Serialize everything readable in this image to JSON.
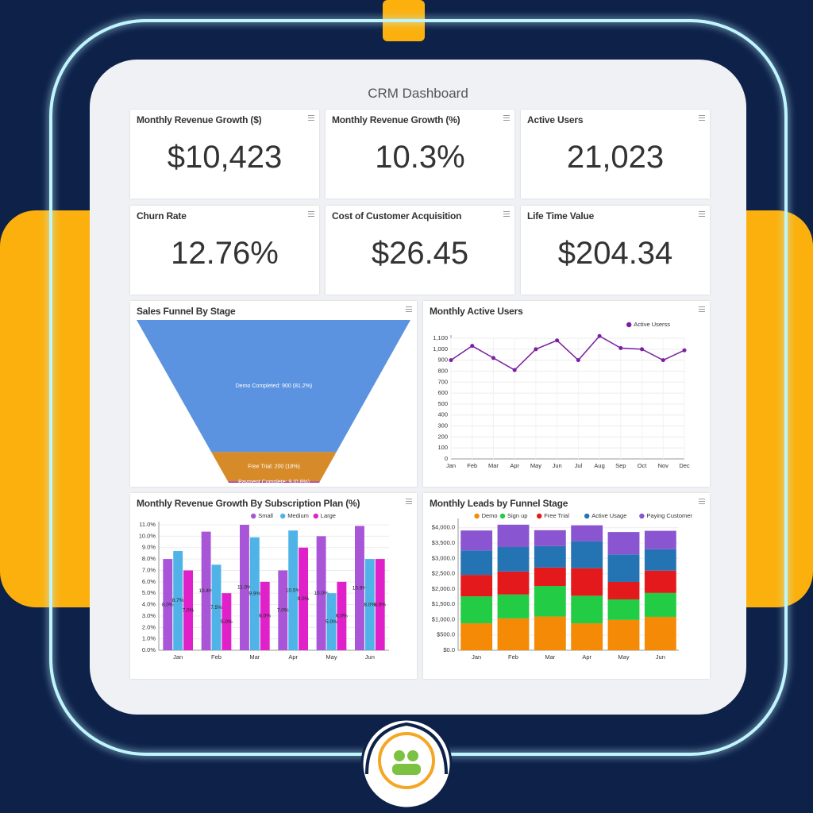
{
  "header": {
    "title": "CRM Dashboard"
  },
  "kpis": [
    {
      "label": "Monthly Revenue Growth ($)",
      "value": "$10,423"
    },
    {
      "label": "Monthly Revenue Growth (%)",
      "value": "10.3%"
    },
    {
      "label": "Active Users",
      "value": "21,023"
    },
    {
      "label": "Churn Rate",
      "value": "12.76%"
    },
    {
      "label": "Cost of Customer Acquisition",
      "value": "$26.45"
    },
    {
      "label": "Life Time Value",
      "value": "$204.34"
    }
  ],
  "chart_data": [
    {
      "type": "funnel",
      "title": "Sales Funnel By Stage",
      "values": [
        900,
        200,
        9
      ],
      "value_labels": [
        "Demo Completed: 900 (81.2%)",
        "Free Trial: 200 (18%)",
        "Payment Complete: 9 (0.8%)"
      ],
      "colors": [
        "#5b93e0",
        "#d68a28",
        "#9c3cb0"
      ]
    },
    {
      "type": "line",
      "title": "Monthly Active Users",
      "categories": [
        "Jan",
        "Feb",
        "Mar",
        "Apr",
        "May",
        "Jun",
        "Jul",
        "Aug",
        "Sep",
        "Oct",
        "Nov",
        "Dec"
      ],
      "series": [
        {
          "name": "Active Userss",
          "color": "#7b1fa2",
          "values": [
            900,
            1030,
            920,
            810,
            1000,
            1080,
            900,
            1120,
            1010,
            1000,
            900,
            990
          ]
        }
      ],
      "ylim": [
        0,
        1100
      ],
      "yticks": [
        0,
        100,
        200,
        300,
        400,
        500,
        600,
        700,
        800,
        900,
        {
          "value": 1000,
          "label": "1,000"
        },
        {
          "value": 1100,
          "label": "1,100"
        }
      ],
      "grid": true,
      "legend": "top-right"
    },
    {
      "type": "bar",
      "title": "Monthly Revenue Growth By Subscription Plan (%)",
      "categories": [
        "Jan",
        "Feb",
        "Mar",
        "Apr",
        "May",
        "Jun"
      ],
      "series": [
        {
          "name": "Small",
          "color": "#a855d8",
          "values": [
            8.0,
            10.4,
            11.0,
            7.0,
            10.0,
            10.9
          ],
          "value_labels": [
            "8.0%",
            "10.4%",
            "11.0%",
            "7.0%",
            "10.0%",
            "10.9%"
          ]
        },
        {
          "name": "Medium",
          "color": "#4fb3e8",
          "values": [
            8.7,
            7.5,
            9.9,
            10.5,
            5.0,
            8.0
          ],
          "value_labels": [
            "8.7%",
            "7.5%",
            "9.9%",
            "10.5%",
            "5.0%",
            "8.0%"
          ]
        },
        {
          "name": "Large",
          "color": "#e020c8",
          "values": [
            7.0,
            5.0,
            6.0,
            9.0,
            6.0,
            8.0
          ],
          "value_labels": [
            "7.0%",
            "5.0%",
            "6.0%",
            "9.0%",
            "6.0%",
            "8.0%"
          ]
        }
      ],
      "ylim": [
        0,
        11
      ],
      "yticks": [
        {
          "value": 0,
          "label": "0.0%"
        },
        {
          "value": 1,
          "label": "1.0%"
        },
        {
          "value": 2,
          "label": "2.0%"
        },
        {
          "value": 3,
          "label": "3.0%"
        },
        {
          "value": 4,
          "label": "4.0%"
        },
        {
          "value": 5,
          "label": "5.0%"
        },
        {
          "value": 6,
          "label": "6.0%"
        },
        {
          "value": 7,
          "label": "7.0%"
        },
        {
          "value": 8,
          "label": "8.0%"
        },
        {
          "value": 9,
          "label": "9.0%"
        },
        {
          "value": 10,
          "label": "10.0%"
        },
        {
          "value": 11,
          "label": "11.0%"
        }
      ],
      "grid": true,
      "legend": "top",
      "stacked": false
    },
    {
      "type": "bar",
      "title": "Monthly Leads by Funnel Stage",
      "categories": [
        "Jan",
        "Feb",
        "Mar",
        "Apr",
        "May",
        "Jun"
      ],
      "series": [
        {
          "name": "Demo",
          "color": "#f58a07",
          "values": [
            880,
            1040,
            1100,
            880,
            990,
            1090
          ]
        },
        {
          "name": "Sign up",
          "color": "#22cc44",
          "values": [
            880,
            780,
            1000,
            900,
            670,
            780
          ]
        },
        {
          "name": "Free Trial",
          "color": "#e3191b",
          "values": [
            700,
            750,
            600,
            900,
            570,
            730
          ]
        },
        {
          "name": "Active Usage",
          "color": "#2474b4",
          "values": [
            800,
            800,
            700,
            880,
            900,
            700
          ]
        },
        {
          "name": "Paying Customer",
          "color": "#8a55d0",
          "values": [
            650,
            730,
            520,
            520,
            730,
            600
          ]
        }
      ],
      "ylim": [
        0,
        4200
      ],
      "yticks": [
        {
          "value": 0,
          "label": "$0.0"
        },
        {
          "value": 500,
          "label": "$500.0"
        },
        {
          "value": 1000,
          "label": "$1,000.0"
        },
        {
          "value": 1500,
          "label": "$1,500.0"
        },
        {
          "value": 2000,
          "label": "$2,000.0"
        },
        {
          "value": 2500,
          "label": "$2,500.0"
        },
        {
          "value": 3000,
          "label": "$3,000.0"
        },
        {
          "value": 3500,
          "label": "$3,500.0"
        },
        {
          "value": 4000,
          "label": "$4,000.0"
        }
      ],
      "grid": true,
      "legend": "top",
      "stacked": true
    }
  ]
}
